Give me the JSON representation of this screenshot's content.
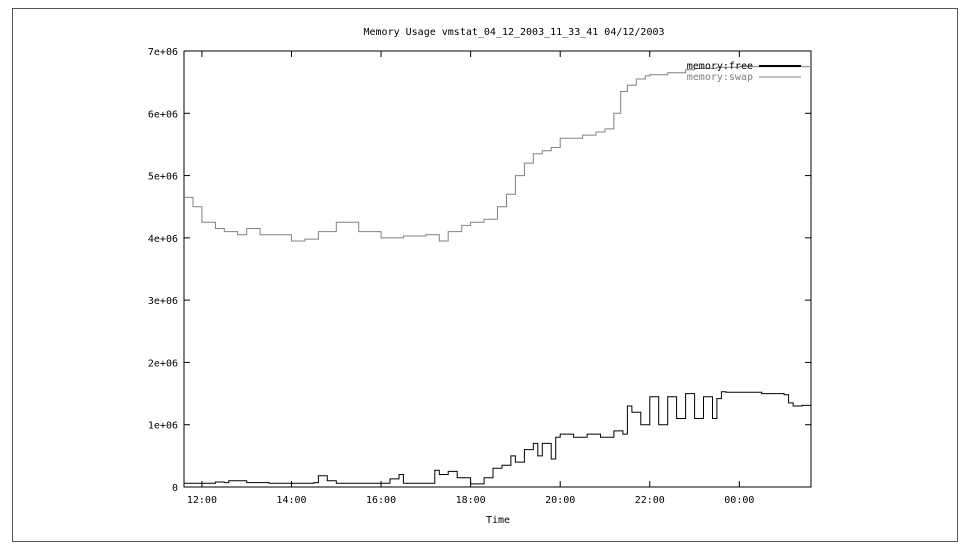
{
  "chart_data": {
    "type": "line",
    "title": "Memory Usage  vmstat_04_12_2003_11_33_41  04/12/2003",
    "xlabel": "Time",
    "ylabel": "",
    "x_range_hours": [
      11.6,
      25.6
    ],
    "ylim": [
      0,
      7000000
    ],
    "grid": false,
    "legend_position": "top-right",
    "x_ticks": [
      {
        "hour": 12,
        "label": "12:00"
      },
      {
        "hour": 14,
        "label": "14:00"
      },
      {
        "hour": 16,
        "label": "16:00"
      },
      {
        "hour": 18,
        "label": "18:00"
      },
      {
        "hour": 20,
        "label": "20:00"
      },
      {
        "hour": 22,
        "label": "22:00"
      },
      {
        "hour": 24,
        "label": "00:00"
      }
    ],
    "y_ticks": [
      {
        "value": 0,
        "label": "0"
      },
      {
        "value": 1000000,
        "label": "1e+06"
      },
      {
        "value": 2000000,
        "label": "2e+06"
      },
      {
        "value": 3000000,
        "label": "3e+06"
      },
      {
        "value": 4000000,
        "label": "4e+06"
      },
      {
        "value": 5000000,
        "label": "5e+06"
      },
      {
        "value": 6000000,
        "label": "6e+06"
      },
      {
        "value": 7000000,
        "label": "7e+06"
      }
    ],
    "series": [
      {
        "name": "memory:free",
        "color": "#000000",
        "x": [
          11.6,
          12.0,
          12.3,
          12.5,
          12.6,
          13.0,
          13.5,
          14.0,
          14.5,
          14.6,
          14.8,
          15.0,
          15.5,
          16.0,
          16.2,
          16.4,
          16.5,
          17.0,
          17.2,
          17.3,
          17.5,
          17.7,
          18.0,
          18.2,
          18.3,
          18.5,
          18.7,
          18.9,
          19.0,
          19.2,
          19.4,
          19.5,
          19.6,
          19.8,
          19.9,
          20.0,
          20.3,
          20.6,
          20.9,
          21.2,
          21.4,
          21.5,
          21.6,
          21.8,
          22.0,
          22.2,
          22.4,
          22.6,
          22.8,
          23.0,
          23.2,
          23.4,
          23.5,
          23.6,
          23.7,
          24.0,
          24.5,
          25.0,
          25.1,
          25.2,
          25.4,
          25.6
        ],
        "y": [
          60000,
          60000,
          80000,
          70000,
          100000,
          70000,
          60000,
          60000,
          70000,
          180000,
          100000,
          60000,
          60000,
          60000,
          130000,
          200000,
          60000,
          60000,
          270000,
          200000,
          250000,
          150000,
          50000,
          50000,
          150000,
          300000,
          350000,
          500000,
          400000,
          600000,
          700000,
          500000,
          700000,
          450000,
          800000,
          850000,
          800000,
          850000,
          800000,
          900000,
          850000,
          1300000,
          1200000,
          1000000,
          1450000,
          1000000,
          1450000,
          1100000,
          1500000,
          1100000,
          1450000,
          1100000,
          1420000,
          1530000,
          1520000,
          1520000,
          1500000,
          1480000,
          1350000,
          1300000,
          1310000,
          1300000
        ]
      },
      {
        "name": "memory:swap",
        "color": "#808080",
        "x": [
          11.6,
          11.8,
          12.0,
          12.3,
          12.5,
          12.8,
          13.0,
          13.3,
          13.6,
          14.0,
          14.3,
          14.6,
          15.0,
          15.5,
          16.0,
          16.5,
          17.0,
          17.3,
          17.5,
          17.8,
          18.0,
          18.3,
          18.6,
          18.8,
          19.0,
          19.2,
          19.4,
          19.6,
          19.8,
          20.0,
          20.2,
          20.5,
          20.8,
          21.0,
          21.2,
          21.35,
          21.5,
          21.7,
          21.9,
          22.0,
          22.4,
          22.8,
          23.0,
          23.5,
          24.0,
          25.0,
          25.6
        ],
        "y": [
          4650000,
          4500000,
          4250000,
          4150000,
          4100000,
          4050000,
          4150000,
          4050000,
          4050000,
          3950000,
          3980000,
          4100000,
          4250000,
          4100000,
          4000000,
          4030000,
          4050000,
          3950000,
          4100000,
          4200000,
          4250000,
          4300000,
          4500000,
          4700000,
          5000000,
          5200000,
          5350000,
          5400000,
          5450000,
          5600000,
          5600000,
          5650000,
          5700000,
          5750000,
          6000000,
          6350000,
          6450000,
          6550000,
          6600000,
          6620000,
          6650000,
          6700000,
          6720000,
          6740000,
          6750000,
          6750000,
          6750000
        ]
      }
    ]
  }
}
